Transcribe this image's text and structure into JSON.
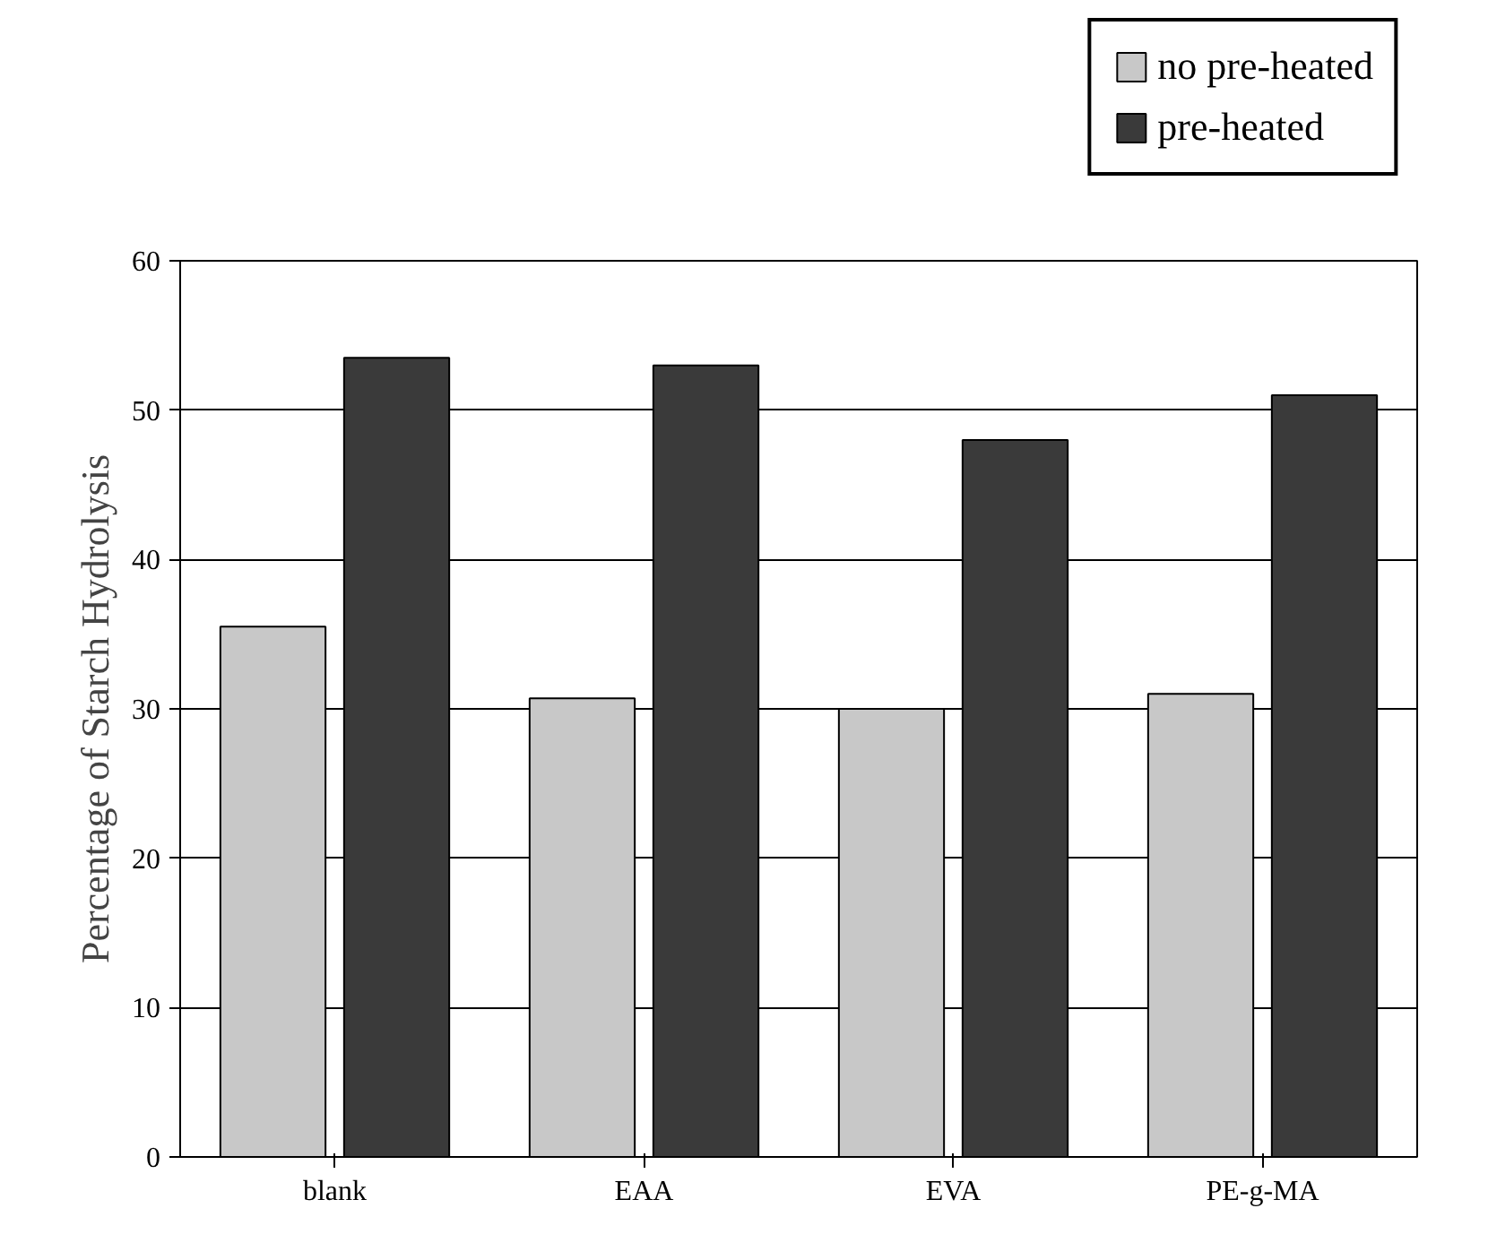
{
  "chart_data": {
    "type": "bar",
    "ylabel": "Percentage of Starch Hydrolysis",
    "categories": [
      "blank",
      "EAA",
      "EVA",
      "PE-g-MA"
    ],
    "series": [
      {
        "name": "no pre-heated",
        "color": "#c8c8c8",
        "values": [
          35.5,
          30.7,
          30,
          31
        ]
      },
      {
        "name": "pre-heated",
        "color": "#3a3a3a",
        "values": [
          53.5,
          53,
          48,
          51
        ]
      }
    ],
    "ylim": [
      0,
      60
    ],
    "yticks": [
      0,
      10,
      20,
      30,
      40,
      50,
      60
    ],
    "grid": "y",
    "legend": "top right"
  }
}
